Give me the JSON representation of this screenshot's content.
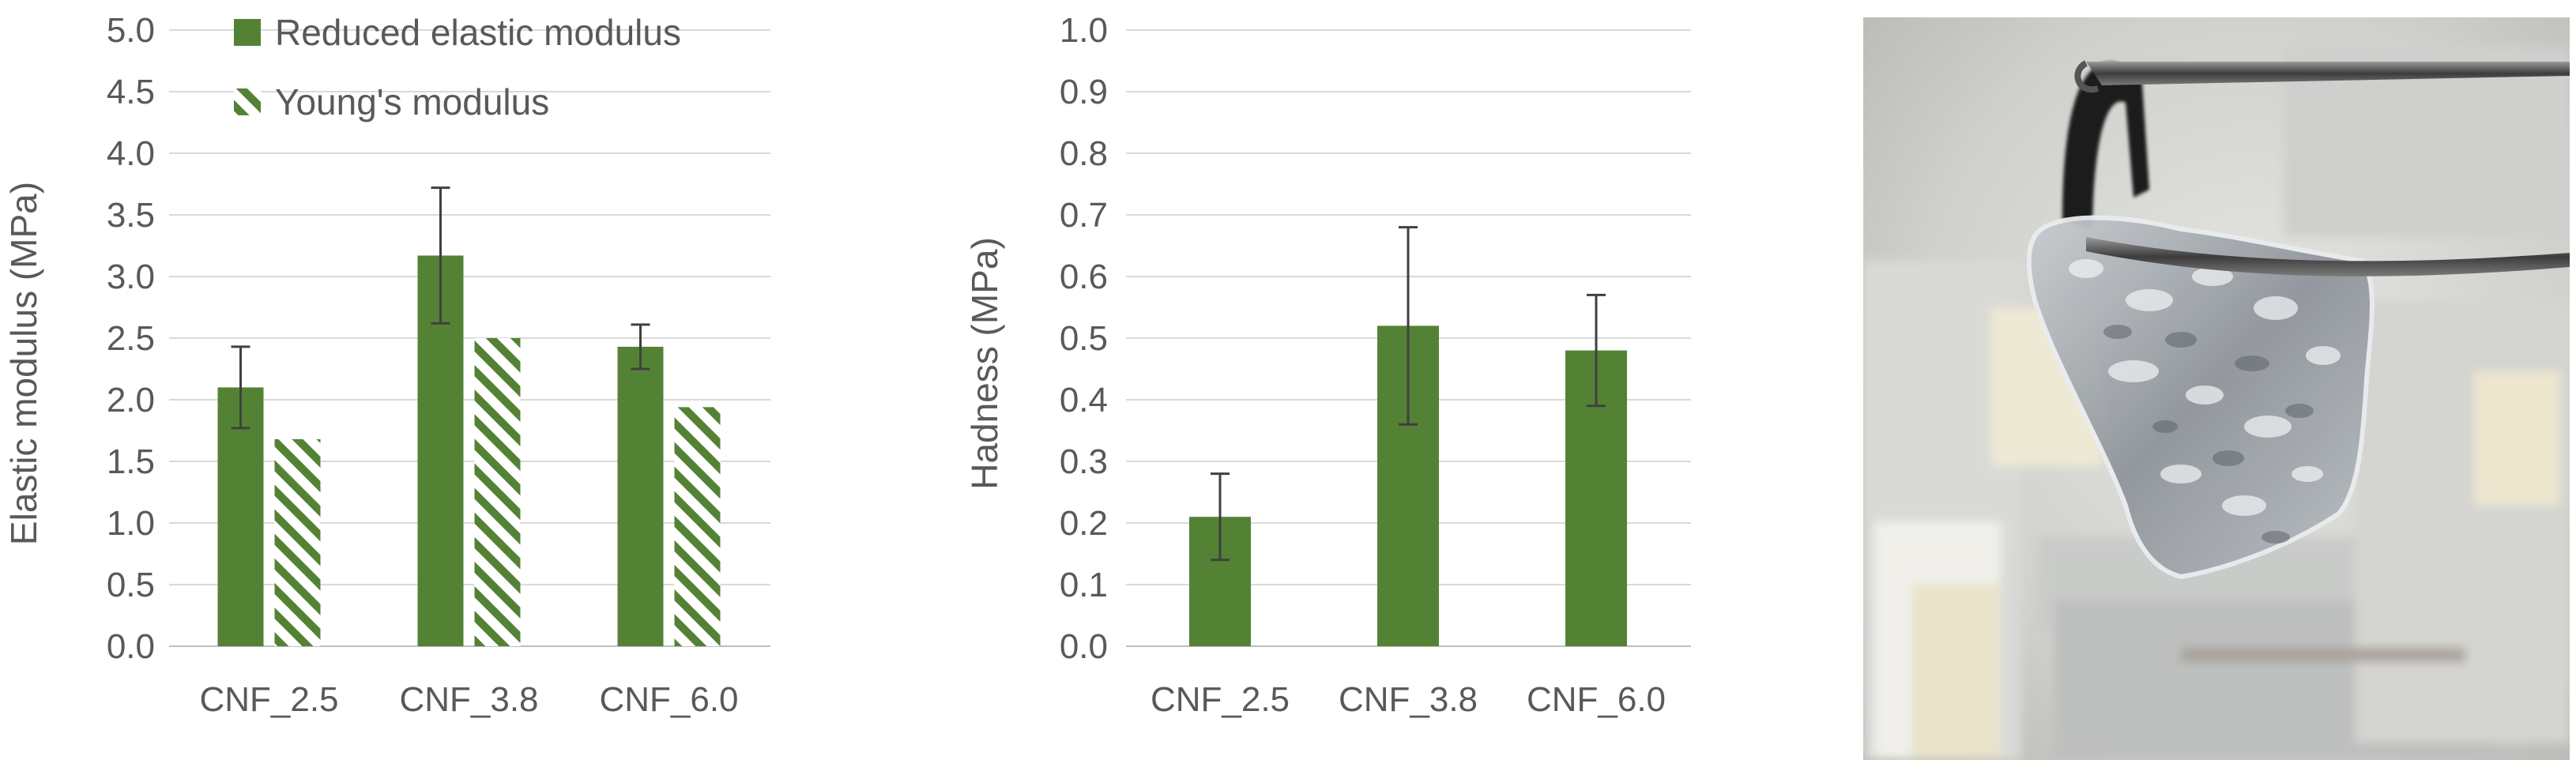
{
  "chart_data": [
    {
      "type": "bar",
      "categories": [
        "CNF_2.5",
        "CNF_3.8",
        "CNF_6.0"
      ],
      "ylabel": "Elastic modulus (MPa)",
      "ylim": [
        0,
        5.0
      ],
      "yticks": [
        "0.0",
        "0.5",
        "1.0",
        "1.5",
        "2.0",
        "2.5",
        "3.0",
        "3.5",
        "4.0",
        "4.5",
        "5.0"
      ],
      "grid": true,
      "legend_position": "top",
      "series": [
        {
          "name": "Reduced elastic modulus",
          "values": [
            2.1,
            3.17,
            2.43
          ],
          "error": [
            0.33,
            0.55,
            0.18
          ],
          "color": "#548235",
          "pattern": "solid"
        },
        {
          "name": "Young's modulus",
          "values": [
            1.68,
            2.5,
            1.94
          ],
          "color": "#548235",
          "pattern": "hatched"
        }
      ]
    },
    {
      "type": "bar",
      "categories": [
        "CNF_2.5",
        "CNF_3.8",
        "CNF_6.0"
      ],
      "ylabel": "Hadness (MPa)",
      "ylim": [
        0,
        1.0
      ],
      "yticks": [
        "0.0",
        "0.1",
        "0.2",
        "0.3",
        "0.4",
        "0.5",
        "0.6",
        "0.7",
        "0.8",
        "0.9",
        "1.0"
      ],
      "grid": true,
      "series": [
        {
          "values": [
            0.21,
            0.52,
            0.48
          ],
          "error": [
            0.07,
            0.16,
            0.09
          ],
          "color": "#548235",
          "pattern": "solid"
        }
      ]
    }
  ],
  "photo": {
    "subject": "transparent-cnf-hydrogel-held-by-tweezers"
  }
}
